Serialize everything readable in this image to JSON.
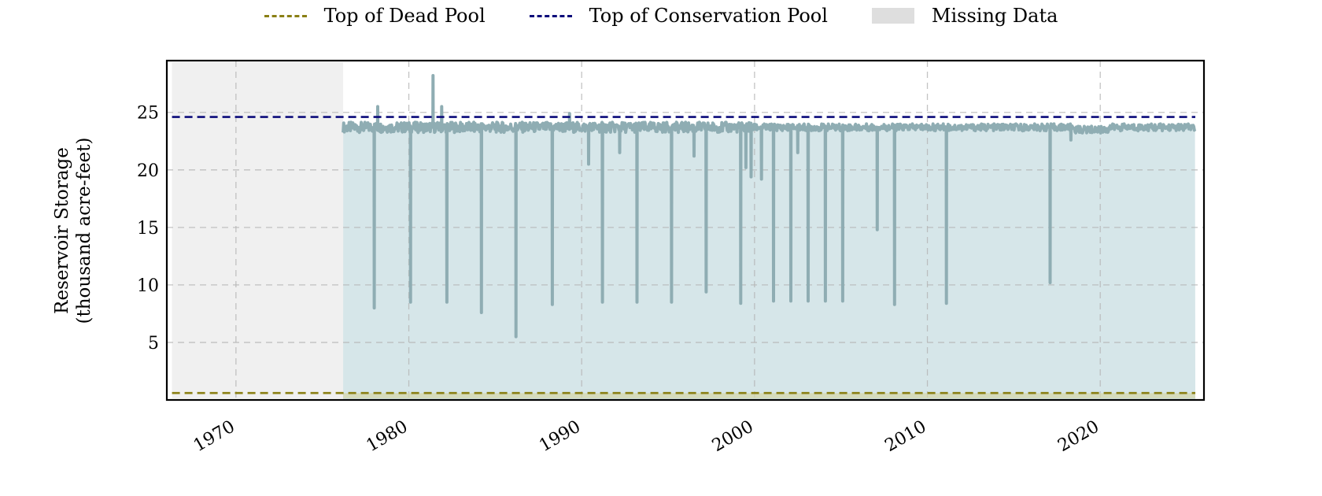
{
  "legend": {
    "items": [
      {
        "label": "Top of Dead Pool",
        "kind": "dash",
        "color": "#8a7f14"
      },
      {
        "label": "Top of Conservation Pool",
        "kind": "dash",
        "color": "#0b0b7a"
      },
      {
        "label": "Missing Data",
        "kind": "box",
        "color": "#dedede"
      }
    ]
  },
  "chart_data": {
    "type": "area",
    "ylabel_line1": "Reservoir Storage",
    "ylabel_line2": "(thousand acre-feet)",
    "xlim": [
      1966.0,
      2026.0
    ],
    "ylim": [
      0,
      29.5
    ],
    "xticks": [
      1970,
      1980,
      1990,
      2000,
      2010,
      2020
    ],
    "yticks": [
      5,
      10,
      15,
      20,
      25
    ],
    "grid": true,
    "legend_position": "top-center",
    "dead_pool": 0.6,
    "conservation_pool": 24.6,
    "missing_data": [
      [
        1966.3,
        1976.2
      ]
    ],
    "series_color": "#8fadb3",
    "fill_color": "#d6e6e9",
    "baseline_level": 23.7,
    "spikes": [
      [
        1978.2,
        25.5
      ],
      [
        1981.4,
        28.2
      ],
      [
        1981.9,
        25.5
      ],
      [
        1989.3,
        24.9
      ]
    ],
    "dips": [
      [
        1978.0,
        8.0
      ],
      [
        1980.1,
        8.5
      ],
      [
        1982.2,
        8.5
      ],
      [
        1984.2,
        7.6
      ],
      [
        1986.2,
        5.5
      ],
      [
        1988.3,
        8.3
      ],
      [
        1990.4,
        20.5
      ],
      [
        1991.2,
        8.5
      ],
      [
        1992.2,
        21.5
      ],
      [
        1993.2,
        8.5
      ],
      [
        1995.2,
        8.5
      ],
      [
        1996.5,
        21.2
      ],
      [
        1997.2,
        9.4
      ],
      [
        1999.2,
        8.4
      ],
      [
        1999.5,
        20.2
      ],
      [
        1999.8,
        19.4
      ],
      [
        2000.4,
        19.2
      ],
      [
        2001.1,
        8.6
      ],
      [
        2002.1,
        8.6
      ],
      [
        2002.5,
        21.5
      ],
      [
        2003.1,
        8.6
      ],
      [
        2004.1,
        8.6
      ],
      [
        2005.1,
        8.6
      ],
      [
        2007.1,
        14.8
      ],
      [
        2008.1,
        8.3
      ],
      [
        2011.1,
        8.4
      ],
      [
        2017.1,
        10.2
      ],
      [
        2018.3,
        22.6
      ]
    ]
  }
}
